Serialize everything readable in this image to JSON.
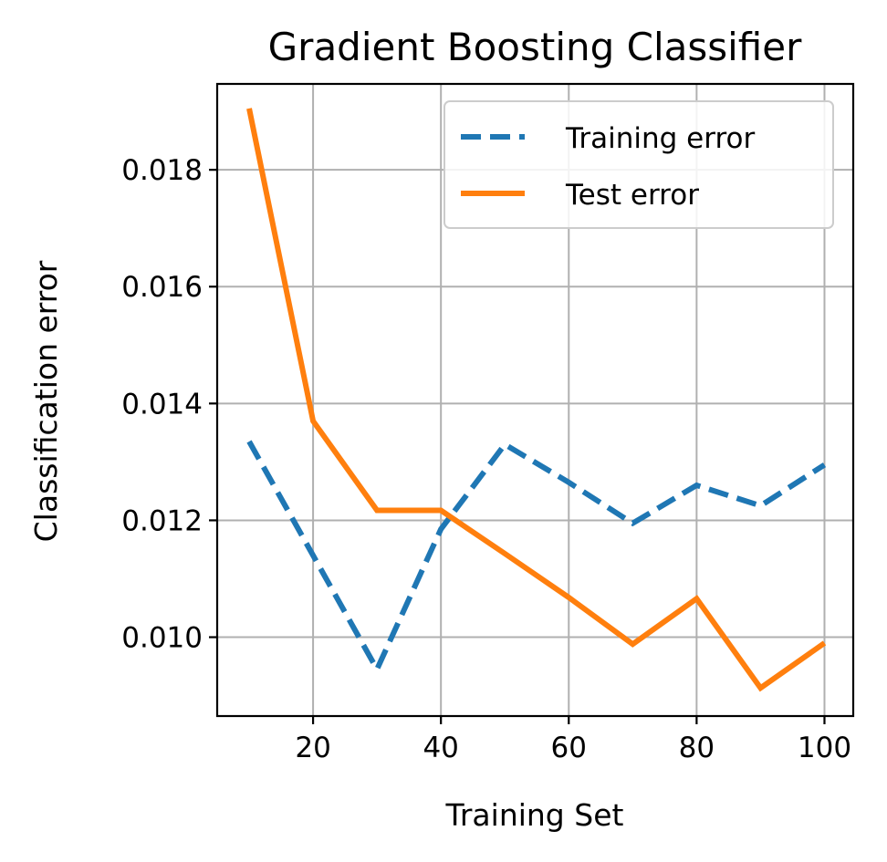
{
  "chart_data": {
    "type": "line",
    "title": "Gradient Boosting Classifier",
    "xlabel": "Training Set",
    "ylabel": "Classification error",
    "xlim": [
      5,
      104.5
    ],
    "ylim": [
      0.00865,
      0.01947
    ],
    "xticks": [
      20,
      40,
      60,
      80,
      100
    ],
    "xtick_labels": [
      "20",
      "40",
      "60",
      "80",
      "100"
    ],
    "yticks": [
      0.01,
      0.012,
      0.014,
      0.016,
      0.018
    ],
    "ytick_labels": [
      "0.010",
      "0.012",
      "0.014",
      "0.016",
      "0.018"
    ],
    "grid": true,
    "legend_position": "top-right",
    "x": [
      10,
      20,
      30,
      40,
      50,
      60,
      70,
      80,
      90,
      100
    ],
    "series": [
      {
        "name": "Training error",
        "color": "#1f77b4",
        "line_style": "dashed",
        "values": [
          0.01335,
          0.0114,
          0.00945,
          0.01185,
          0.0133,
          0.01265,
          0.01195,
          0.0126,
          0.01225,
          0.01295
        ]
      },
      {
        "name": "Test error",
        "color": "#ff7f0e",
        "line_style": "solid",
        "values": [
          0.01905,
          0.0137,
          0.01217,
          0.01217,
          0.01143,
          0.01068,
          0.00988,
          0.01066,
          0.00913,
          0.0099
        ]
      }
    ]
  }
}
